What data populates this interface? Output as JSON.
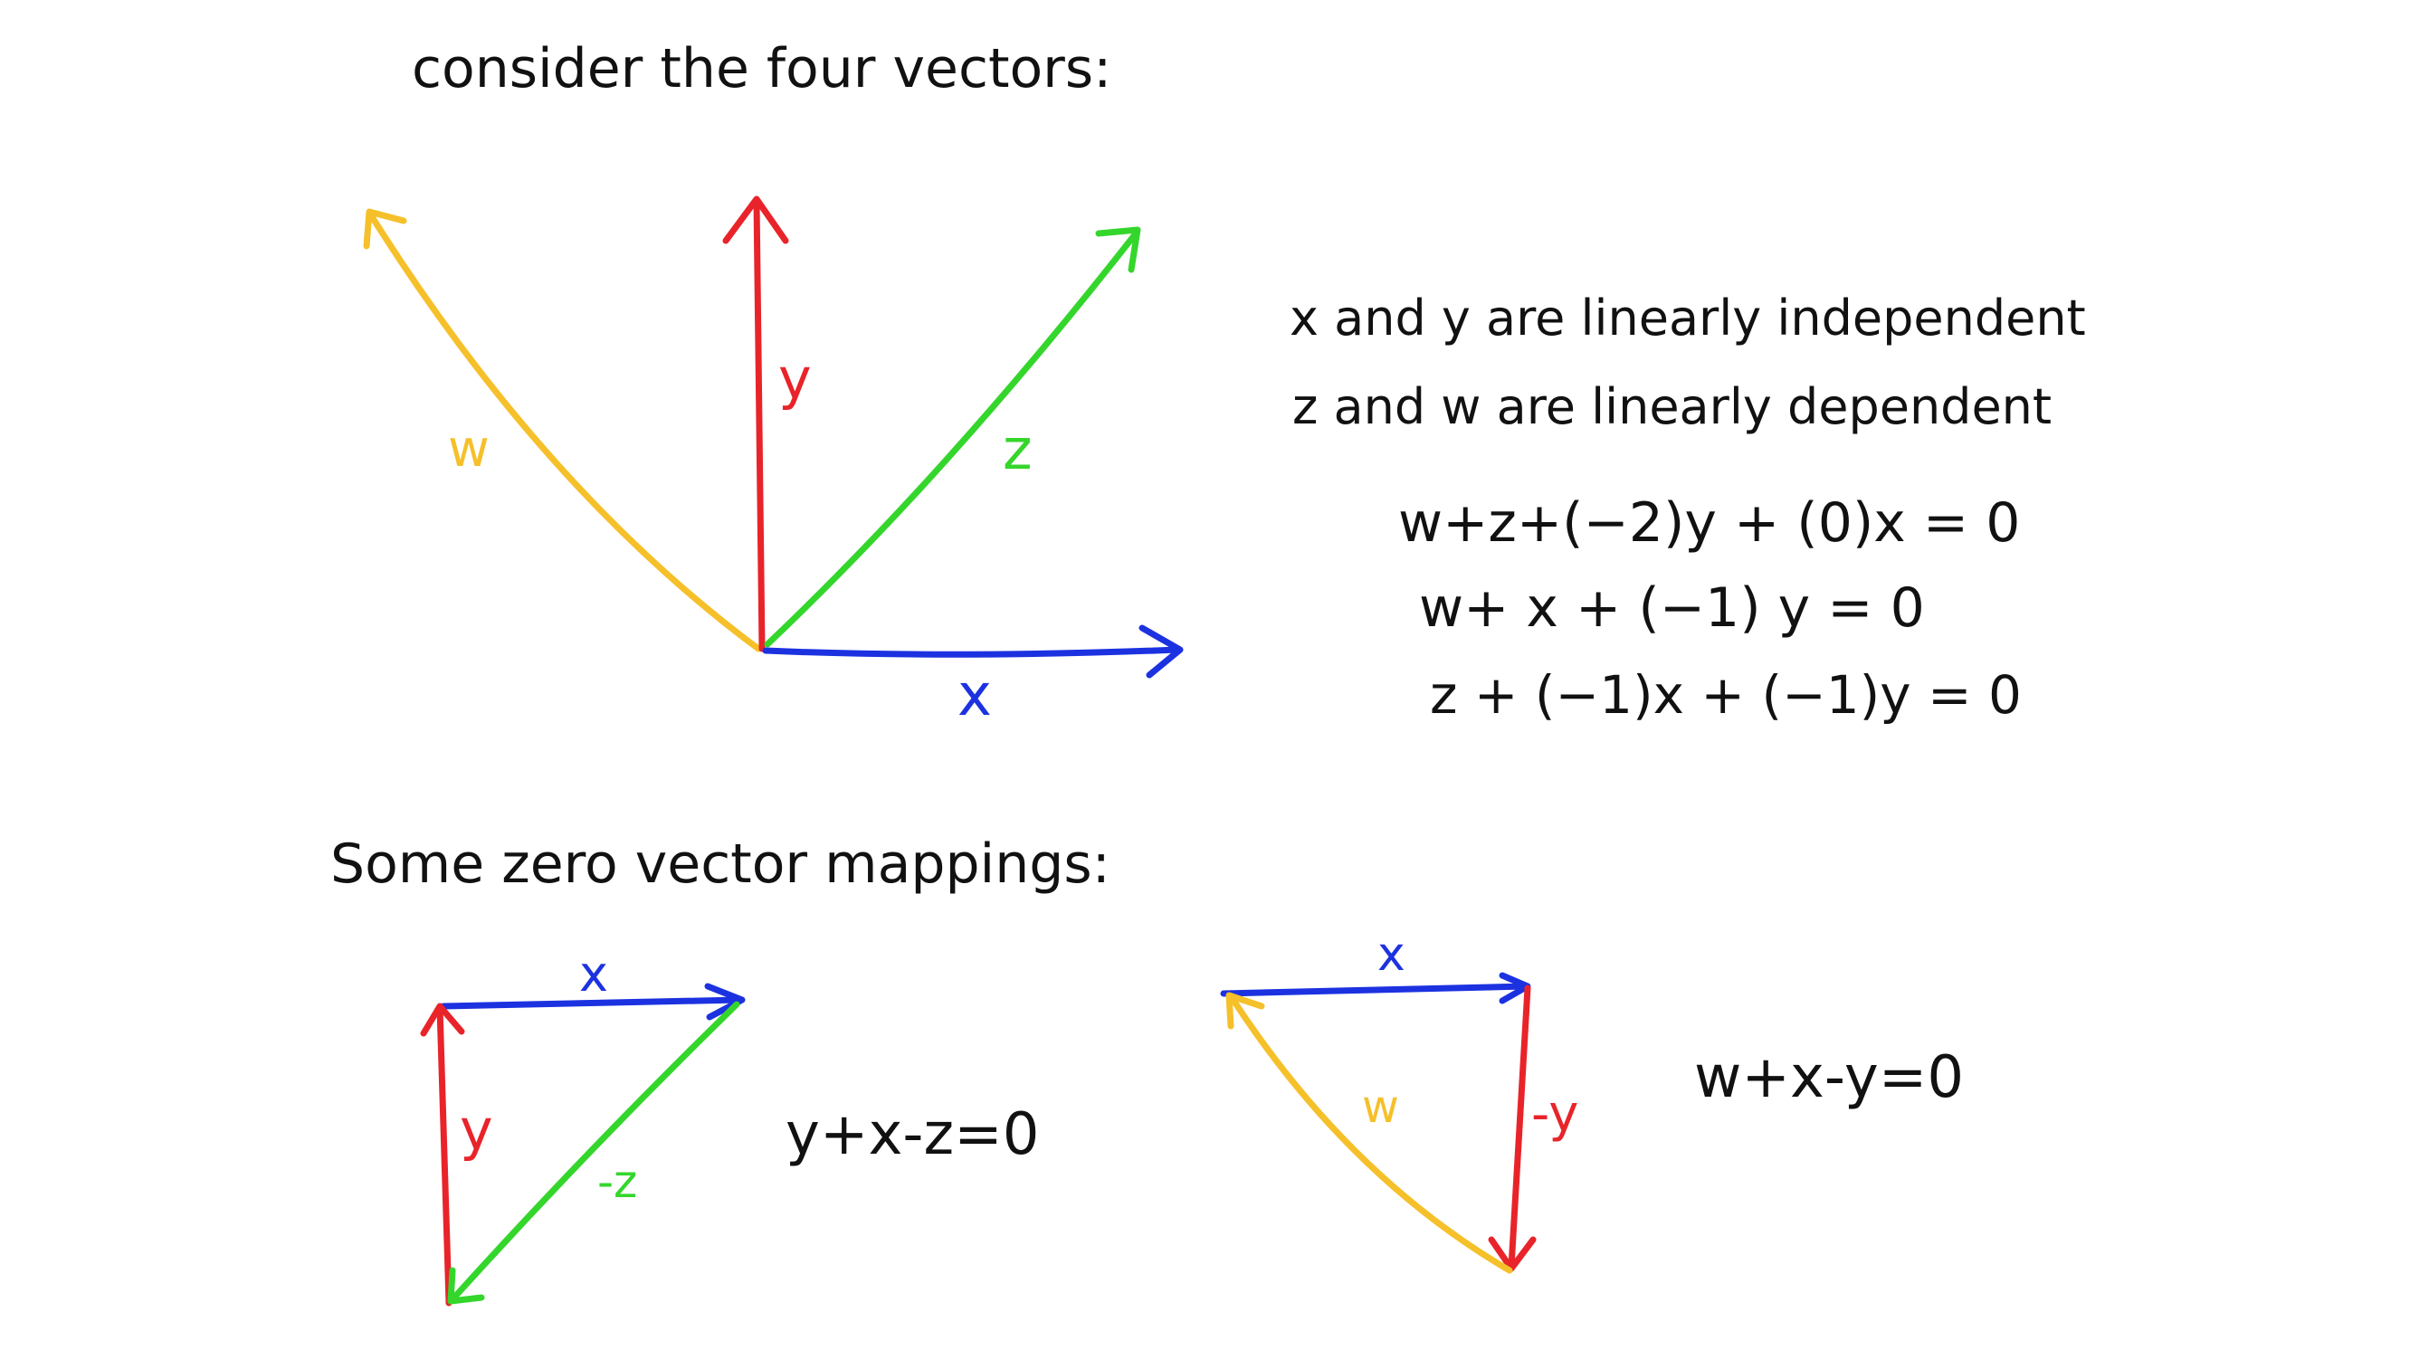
{
  "headings": {
    "top": "consider the four vectors:",
    "bottom": "Some zero vector mappings:"
  },
  "vector_labels": {
    "w": "w",
    "y": "y",
    "z": "z",
    "x": "x"
  },
  "statements": {
    "independent": "x and y are linearly independent",
    "dependent": "z and w are linearly dependent"
  },
  "equations": {
    "eq1": "w+z+(−2)y + (0)x = 0",
    "eq2": "w+ x + (−1) y = 0",
    "eq3": "z + (−1)x + (−1)y = 0"
  },
  "mapping1": {
    "x_label": "x",
    "y_label": "y",
    "z_label": "-z",
    "equation": "y+x-z=0"
  },
  "mapping2": {
    "x_label": "x",
    "w_label": "w",
    "y_label": "-y",
    "equation": "w+x-y=0"
  },
  "colors": {
    "w": "#f5c02a",
    "y": "#e8242a",
    "z": "#34d62c",
    "x": "#1c32e0",
    "ink": "#111111"
  }
}
